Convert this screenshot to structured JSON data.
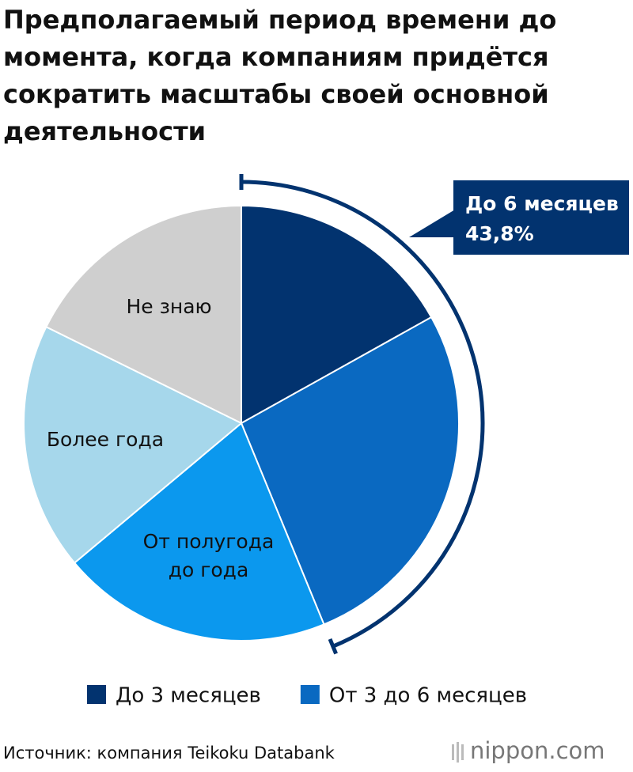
{
  "chart_data": {
    "type": "pie",
    "title": "Предполагаемый период времени до момента, когда компаниям придётся сократить масштабы своей основной деятельности",
    "categories": [
      "До 3 месяцев",
      "От 3 до 6 месяцев",
      "От полугода до года",
      "Более года",
      "Не знаю"
    ],
    "values": [
      16.9,
      26.9,
      20.1,
      18.4,
      17.7
    ],
    "colors": [
      "#02336f",
      "#0a69c1",
      "#0b98ee",
      "#a6d7eb",
      "#cfcfcf"
    ],
    "category_placement": [
      "legend",
      "legend",
      "inside",
      "inside",
      "inside"
    ],
    "annotation": {
      "text": "До 6 месяцев",
      "value": 43.8,
      "label": "43,8%"
    },
    "source": "Источник: компания Teikoku Databank",
    "logo": "nippon.com"
  }
}
